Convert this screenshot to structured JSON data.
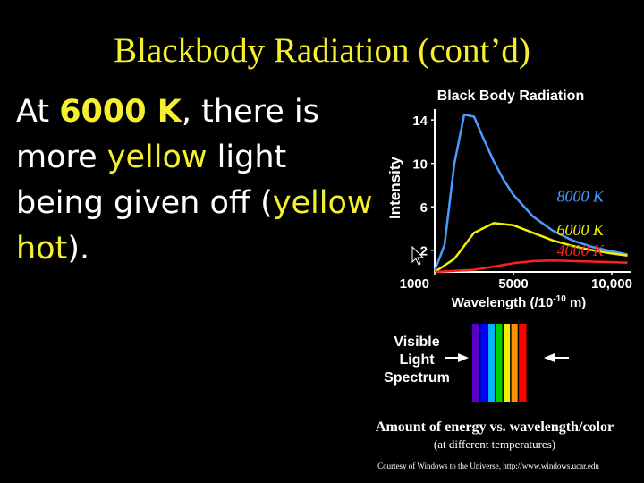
{
  "slide": {
    "title": "Blackbody Radiation (cont’d)",
    "bullet": {
      "p1": "At ",
      "temp": "6000 K",
      "p2": ", there is more ",
      "yellow": "yellow",
      "p3": " light being given off (",
      "hot": "yellow hot",
      "p4": ")."
    },
    "caption_main": "Amount of energy vs. wavelength/color",
    "caption_sub": "(at different temperatures)",
    "credit": "Courtesy of Windows to the Universe, http://www.windows.ucar.edu"
  },
  "spectrum": {
    "label_lines": [
      "Visible",
      "Light",
      "Spectrum"
    ],
    "colors": [
      "#5a00c8",
      "#0000ff",
      "#00b4ff",
      "#00d000",
      "#f0f000",
      "#ff9000",
      "#ff0000"
    ]
  },
  "chart_data": {
    "type": "line",
    "title": "Black Body Radiation",
    "xlabel": "Wavelength (/10",
    "xlabel_exp": "-10",
    "xlabel_tail": " m)",
    "ylabel": "Intensity",
    "xlim": [
      1000,
      11000
    ],
    "ylim": [
      0,
      15
    ],
    "x_ticks": [
      1000,
      5000,
      10000
    ],
    "x_tick_labels": [
      "1000",
      "5000",
      "10,000"
    ],
    "y_ticks": [
      2,
      6,
      10,
      14
    ],
    "grid": false,
    "series": [
      {
        "name": "8000 K",
        "color": "#4a9cff",
        "x": [
          1000,
          1500,
          2000,
          2500,
          3000,
          3500,
          4000,
          4500,
          5000,
          6000,
          7000,
          8000,
          9000,
          10000,
          10800
        ],
        "y": [
          0.1,
          2.5,
          10,
          14.5,
          14.3,
          12.2,
          10.2,
          8.5,
          7.1,
          5.1,
          3.8,
          2.9,
          2.3,
          1.9,
          1.6
        ]
      },
      {
        "name": "6000 K",
        "color": "#f0f000",
        "x": [
          1000,
          2000,
          3000,
          4000,
          5000,
          6000,
          7000,
          8000,
          9000,
          10000,
          10800
        ],
        "y": [
          0.0,
          1.2,
          3.6,
          4.5,
          4.3,
          3.6,
          2.9,
          2.4,
          2.0,
          1.7,
          1.5
        ]
      },
      {
        "name": "4000 K",
        "color": "#ff2020",
        "x": [
          1000,
          3000,
          5000,
          6000,
          7000,
          8000,
          9000,
          10000,
          10800
        ],
        "y": [
          0.0,
          0.2,
          0.8,
          1.0,
          1.05,
          1.0,
          0.95,
          0.9,
          0.85
        ]
      }
    ]
  }
}
